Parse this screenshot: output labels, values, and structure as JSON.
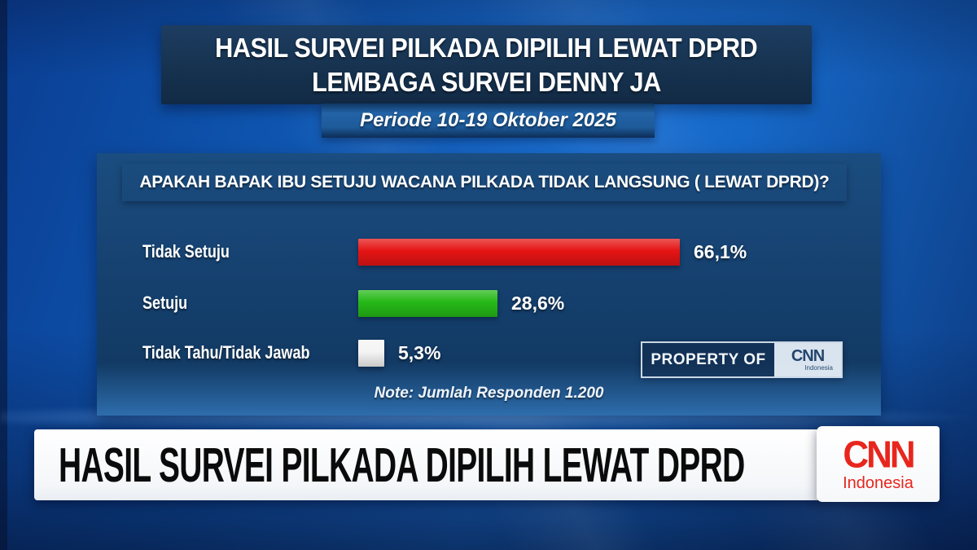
{
  "header": {
    "title_line1": "HASIL SURVEI PILKADA DIPILIH LEWAT DPRD",
    "title_line2": "LEMBAGA SURVEI DENNY JA",
    "period": "Periode 10-19 Oktober 2025"
  },
  "chart_data": {
    "type": "bar",
    "orientation": "horizontal",
    "title": "APAKAH BAPAK IBU SETUJU WACANA PILKADA TIDAK LANGSUNG ( LEWAT DPRD)?",
    "categories": [
      "Tidak Setuju",
      "Setuju",
      "Tidak Tahu/Tidak Jawab"
    ],
    "values": [
      66.1,
      28.6,
      5.3
    ],
    "value_labels": [
      "66,1%",
      "28,6%",
      "5,3%"
    ],
    "bar_colors": [
      "#e51414",
      "#25b917",
      "#f4f4f4"
    ],
    "xlim": [
      0,
      100
    ],
    "grid": false,
    "legend": false,
    "annotation": "Note: Jumlah Responden 1.200"
  },
  "watermark": {
    "text": "PROPERTY OF",
    "brand": "CNN",
    "brand_sub": "Indonesia"
  },
  "lower_third": {
    "headline": "HASIL SURVEI PILKADA DIPILIH LEWAT DPRD",
    "logo_text": "CNN",
    "logo_sub": "Indonesia"
  },
  "colors": {
    "background_blue": "#1668c8",
    "panel_blue": "#15406e",
    "banner_navy": "#16324f",
    "bar_red": "#e51414",
    "bar_green": "#25b917",
    "bar_white": "#f4f4f4",
    "cnn_red": "#e8261d"
  }
}
